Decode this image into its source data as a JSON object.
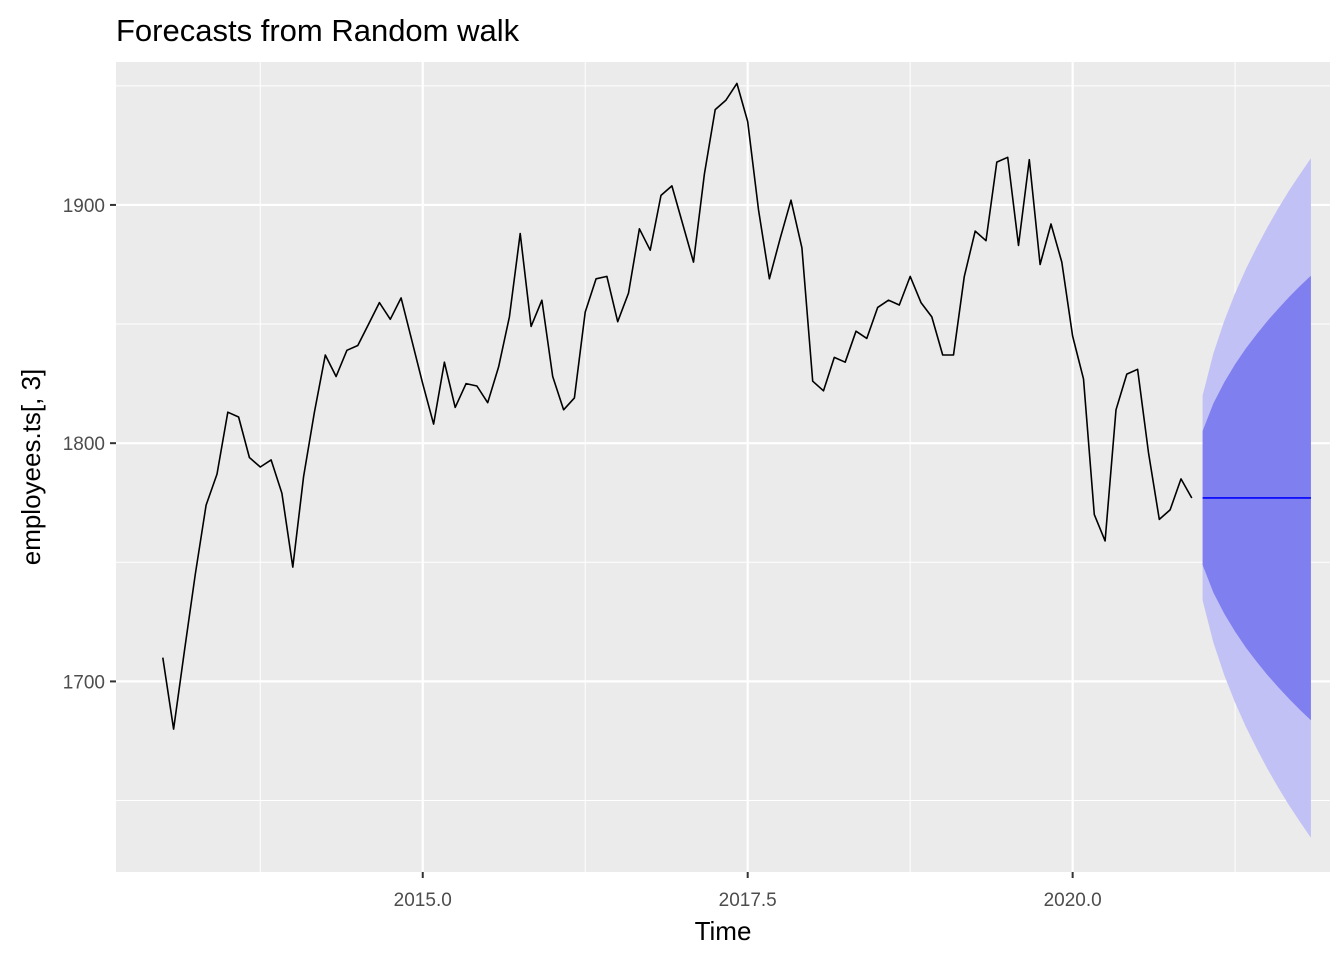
{
  "chart_data": {
    "type": "line",
    "title": "Forecasts from Random walk",
    "xlabel": "Time",
    "ylabel": "employees.ts[, 3]",
    "xlim": [
      2012.64,
      2021.98
    ],
    "ylim": [
      1620,
      1960
    ],
    "x_ticks": [
      2015.0,
      2017.5,
      2020.0
    ],
    "x_tick_labels": [
      "2015.0",
      "2017.5",
      "2020.0"
    ],
    "y_ticks": [
      1700,
      1800,
      1900
    ],
    "y_tick_labels": [
      "1700",
      "1800",
      "1900"
    ],
    "grid": true,
    "legend": "none",
    "start": 2013.0,
    "frequency": 12,
    "series": [
      {
        "values": [
          1710,
          1680,
          1713,
          1745,
          1774,
          1787,
          1813,
          1811,
          1794,
          1790,
          1793,
          1779,
          1748,
          1786,
          1813,
          1837,
          1828,
          1839,
          1841,
          1850,
          1859,
          1852,
          1861,
          1843,
          1825,
          1808,
          1834,
          1815,
          1825,
          1824,
          1817,
          1832,
          1853,
          1888,
          1849,
          1860,
          1828,
          1814,
          1819,
          1855,
          1869,
          1870,
          1851,
          1863,
          1890,
          1881,
          1904,
          1908,
          1892,
          1876,
          1913,
          1940,
          1944,
          1951,
          1935,
          1898,
          1869,
          1886,
          1902,
          1882,
          1826,
          1822,
          1836,
          1834,
          1847,
          1844,
          1857,
          1860,
          1858,
          1870,
          1859,
          1853,
          1837,
          1837,
          1870,
          1889,
          1885,
          1918,
          1920,
          1883,
          1919,
          1875,
          1892,
          1876,
          1845,
          1827,
          1770,
          1759,
          1814,
          1829,
          1831,
          1796,
          1768,
          1772,
          1785,
          1777
        ]
      }
    ],
    "forecast": {
      "start": 2021.0,
      "end": 2021.833,
      "horizon": 11,
      "point": 1777,
      "color_point": "#0000ff",
      "color_80": "#7f7fef",
      "color_95": "#c1c1f5",
      "lower80": [
        1748.9,
        1737.3,
        1728.4,
        1720.9,
        1714.2,
        1708.2,
        1702.6,
        1697.5,
        1692.6,
        1688.0,
        1683.7
      ],
      "upper80": [
        1805.1,
        1816.7,
        1825.6,
        1833.1,
        1839.8,
        1845.8,
        1851.4,
        1856.5,
        1861.4,
        1866.0,
        1870.3
      ],
      "lower95": [
        1734.0,
        1716.3,
        1702.6,
        1691.1,
        1680.9,
        1671.7,
        1663.2,
        1655.3,
        1647.9,
        1641.0,
        1634.4
      ],
      "upper95": [
        1820.0,
        1837.7,
        1851.4,
        1862.9,
        1873.1,
        1882.3,
        1890.8,
        1898.7,
        1906.1,
        1913.0,
        1919.6
      ]
    },
    "colors": {
      "panel_bg": "#ebebeb",
      "grid_major": "#ffffff",
      "line": "#000000",
      "tick_text": "#4d4d4d",
      "tick_mark": "#333333"
    }
  }
}
